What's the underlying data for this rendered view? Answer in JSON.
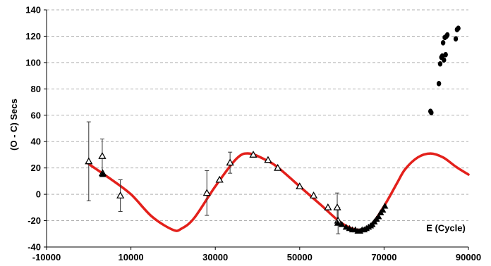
{
  "chart_data": {
    "type": "scatter",
    "title": "",
    "xlabel": "E (Cycle)",
    "ylabel": "(O - C) Secs",
    "xlim": [
      -10000,
      90000
    ],
    "ylim": [
      -40,
      140
    ],
    "xticks": [
      -10000,
      10000,
      30000,
      50000,
      70000,
      90000
    ],
    "yticks": [
      -40,
      -20,
      0,
      20,
      40,
      60,
      80,
      100,
      120,
      140
    ],
    "xtick_labels": [
      "-10000",
      "10000",
      "30000",
      "50000",
      "70000",
      "90000"
    ],
    "ytick_labels": [
      "-40",
      "-20",
      "0",
      "20",
      "40",
      "60",
      "80",
      "100",
      "120",
      "140"
    ],
    "grid": {
      "horizontal": true,
      "vertical": false,
      "style": "dashed"
    },
    "colors": {
      "fit": "#e3201b",
      "points": "#000000",
      "grid": "#b0b0b0"
    },
    "series": [
      {
        "marker": "triangle-open",
        "x": [
          0,
          3200,
          3300,
          7500,
          28000,
          31000,
          33500,
          39000,
          42500,
          44800,
          50000,
          53300,
          56700,
          58900,
          59100
        ],
        "y": [
          25,
          29,
          16,
          -1,
          1,
          11,
          24,
          30,
          26,
          20,
          6,
          -1,
          -10,
          -10,
          -20
        ],
        "yerr": [
          30,
          13,
          0,
          12,
          17,
          0,
          8,
          0,
          0,
          0,
          0,
          0,
          0,
          11,
          10
        ]
      },
      {
        "marker": "triangle-filled",
        "x": [
          3300,
          59000,
          60000,
          61000,
          61800,
          62500,
          63200,
          63800,
          64300,
          64800,
          65300,
          65800,
          66300,
          66800,
          67200,
          67700,
          68200,
          68700,
          69200,
          69700,
          70200
        ],
        "y": [
          15,
          -22,
          -23,
          -25,
          -26,
          -27,
          -27,
          -28,
          -28,
          -27,
          -27,
          -26,
          -25,
          -24,
          -23,
          -21,
          -19,
          -17,
          -14,
          -12,
          -9
        ]
      },
      {
        "marker": "dot",
        "x": [
          81000,
          81200,
          83000,
          83300,
          83600,
          83800,
          84000,
          84200,
          84400,
          84600,
          84800,
          85000,
          87000,
          87300,
          87600
        ],
        "y": [
          63,
          62,
          84,
          99,
          104,
          105,
          115,
          102,
          119,
          106,
          120,
          121,
          118,
          125,
          126
        ]
      }
    ],
    "fit_curve": {
      "type": "line",
      "x": [
        0,
        5000,
        10000,
        15000,
        20000,
        22000,
        25000,
        30000,
        35000,
        38000,
        42000,
        45000,
        50000,
        55000,
        60000,
        64000,
        67000,
        70000,
        73000,
        75000,
        78000,
        81000,
        84000,
        87000,
        90000
      ],
      "y": [
        23,
        12,
        0,
        -17,
        -27,
        -26,
        -18,
        6,
        27,
        31,
        26,
        20,
        6,
        -8,
        -22,
        -27,
        -23,
        -9,
        8,
        19,
        28,
        31,
        28,
        21,
        15
      ]
    },
    "annotations": [
      {
        "text": "E (Cycle)",
        "x": 80000,
        "y": -28
      }
    ]
  }
}
